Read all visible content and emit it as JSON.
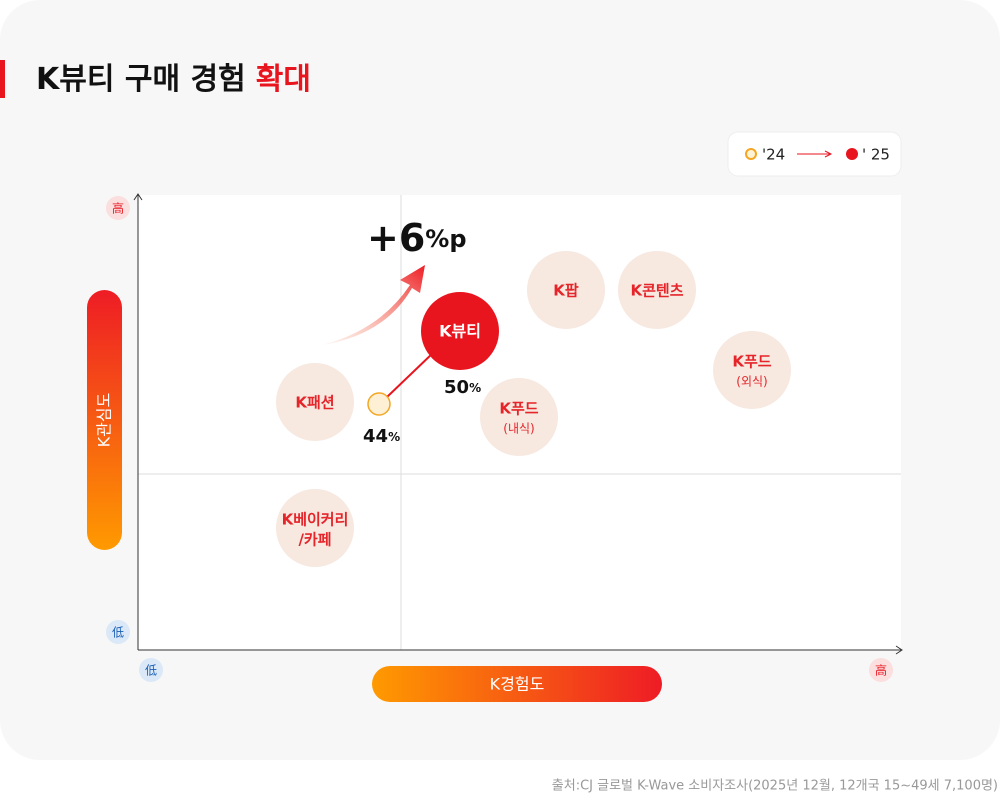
{
  "chart_data": {
    "type": "bubble-map",
    "title": [
      "K뷰티 구매 경험",
      "확대"
    ],
    "legend": [
      "'24",
      "' 25"
    ],
    "y_axis": {
      "label": "K관심도",
      "high": "高",
      "low": "低"
    },
    "x_axis": {
      "label": "K경험도",
      "high": "高",
      "low": "低"
    },
    "bubbles": [
      [
        "K팝"
      ],
      [
        "K콘텐츠"
      ],
      [
        "K푸드",
        "(외식)"
      ],
      [
        "K패션"
      ],
      [
        "K푸드",
        "(내식)"
      ],
      [
        "K베이커리",
        "/카페"
      ]
    ],
    "highlight": "K뷰티",
    "points": [
      {
        "name": "'24",
        "value": 44,
        "color": "#f5a623"
      },
      {
        "name": "' 25",
        "value": 50,
        "color": "#e8141e"
      }
    ],
    "unit": "%",
    "change": {
      "label": "+6",
      "unit": "%p"
    },
    "source": "출처:CJ 글로벌 K-Wave 소비자조사(2025년 12월, 12개국 15~49세 7,100명)"
  }
}
